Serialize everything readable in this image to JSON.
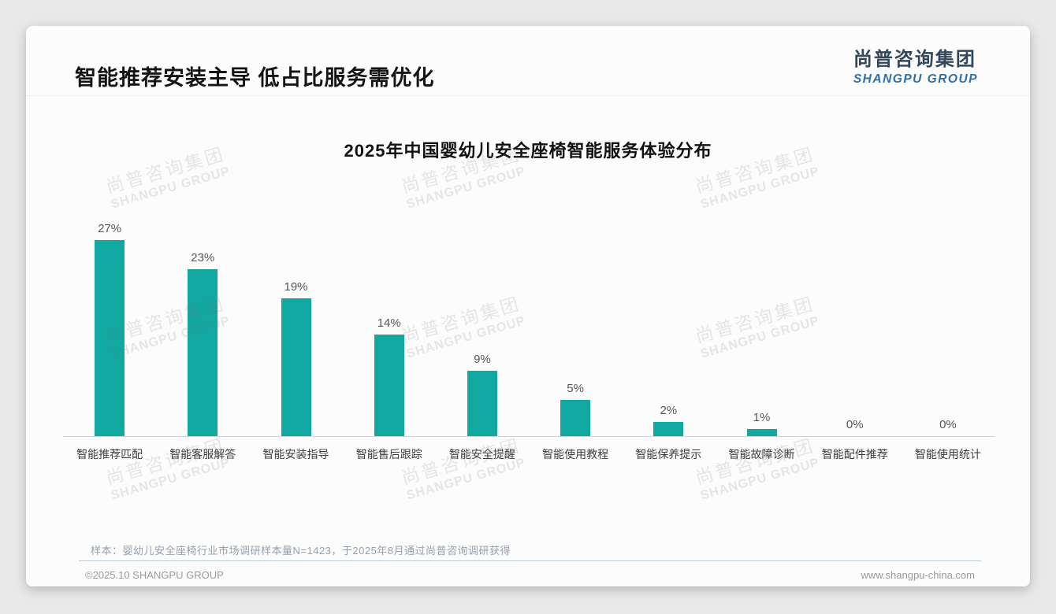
{
  "header": {
    "title": "智能推荐安装主导 低占比服务需优化"
  },
  "branding": {
    "logo_cn": "尚普咨询集团",
    "logo_en": "SHANGPU GROUP",
    "logo_cn_color": "#33475b",
    "logo_en_color": "#2f6fa7",
    "watermark_cn": "尚普咨询集团",
    "watermark_en": "SHANGPU GROUP"
  },
  "chart_data": {
    "type": "bar",
    "title": "2025年中国婴幼儿安全座椅智能服务体验分布",
    "categories": [
      "智能推荐匹配",
      "智能客服解答",
      "智能安装指导",
      "智能售后跟踪",
      "智能安全提醒",
      "智能使用教程",
      "智能保养提示",
      "智能故障诊断",
      "智能配件推荐",
      "智能使用统计"
    ],
    "values": [
      27,
      23,
      19,
      14,
      9,
      5,
      2,
      1,
      0,
      0
    ],
    "data_labels": [
      "27%",
      "23%",
      "19%",
      "14%",
      "9%",
      "5%",
      "2%",
      "1%",
      "0%",
      "0%"
    ],
    "unit": "%",
    "bar_color": "#12a8a2",
    "ylim": [
      0,
      30
    ],
    "grid": false,
    "legend": "none",
    "xlabel": "",
    "ylabel": ""
  },
  "footer": {
    "note": "样本：婴幼儿安全座椅行业市场调研样本量N=1423，于2025年8月通过尚普咨询调研获得",
    "copyright": "©2025.10 SHANGPU GROUP",
    "website": "www.shangpu-china.com"
  }
}
